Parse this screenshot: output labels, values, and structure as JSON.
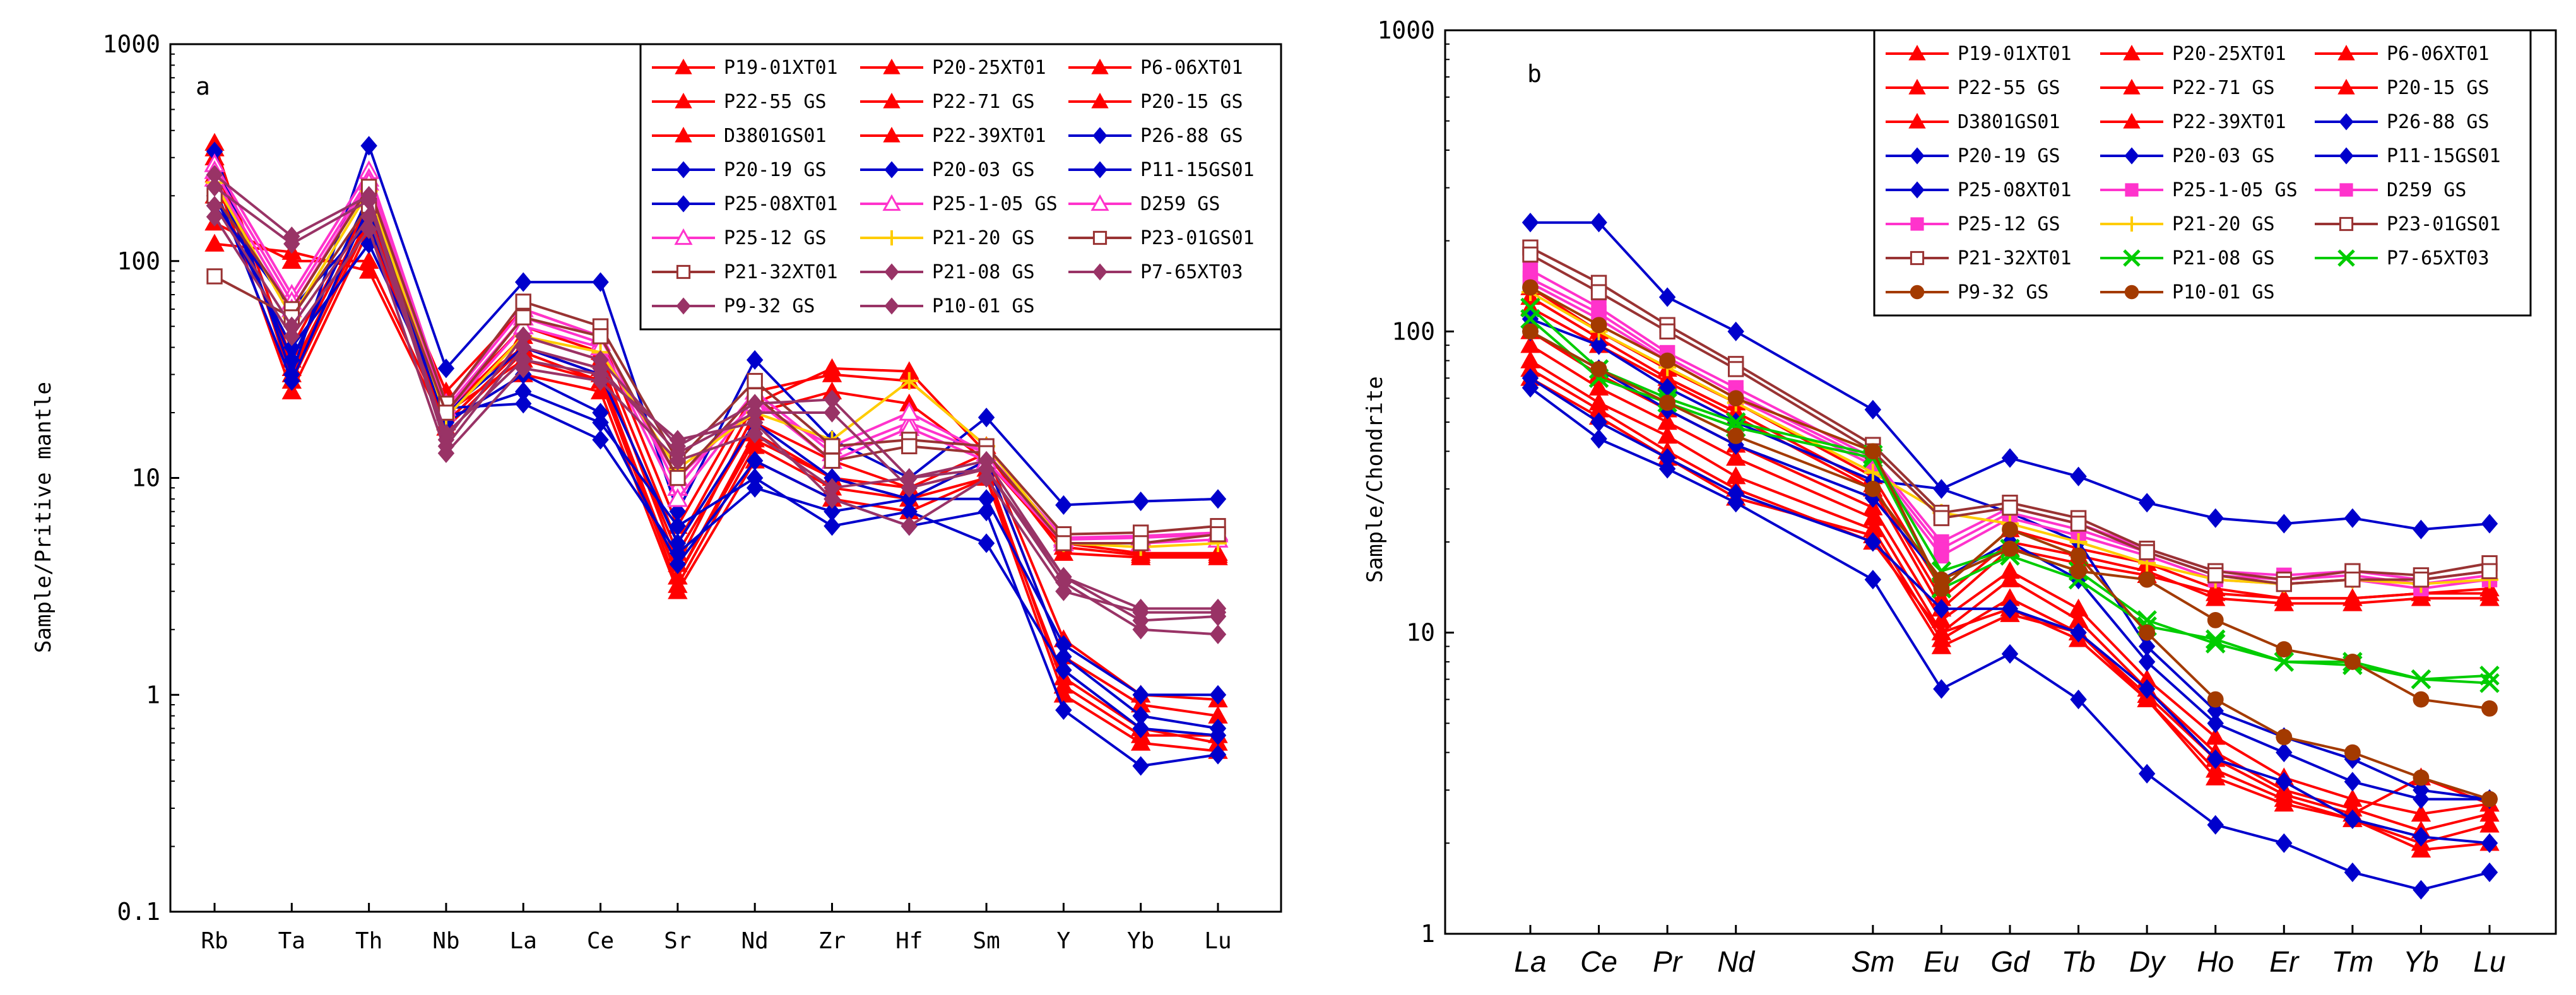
{
  "chart_data": [
    {
      "type": "line",
      "panel_label": "a",
      "ylabel": "Sample/Pritive mantle",
      "yscale": "log",
      "ylim": [
        0.1,
        1000
      ],
      "y_tick_labels": [
        "0.1",
        "1",
        "10",
        "100",
        "1000"
      ],
      "categories": [
        "Rb",
        "Ta",
        "Th",
        "Nb",
        "La",
        "Ce",
        "Sr",
        "Nd",
        "Zr",
        "Hf",
        "Sm",
        "Y",
        "Yb",
        "Lu"
      ],
      "legend_position": "top-right",
      "series": [
        {
          "name": "P19-01XT01",
          "color": "#ff0000",
          "marker": "triangle",
          "values": [
            350,
            28,
            150,
            20,
            35,
            28,
            3.5,
            15,
            10,
            8,
            12,
            1.5,
            0.9,
            0.8
          ]
        },
        {
          "name": "P20-25XT01",
          "color": "#ff0000",
          "marker": "triangle",
          "values": [
            300,
            30,
            160,
            22,
            40,
            32,
            4.5,
            18,
            12,
            9,
            13,
            1.8,
            1.0,
            0.95
          ]
        },
        {
          "name": "P6-06XT01",
          "color": "#ff0000",
          "marker": "triangle",
          "values": [
            250,
            25,
            140,
            18,
            30,
            25,
            3.0,
            12,
            8,
            7,
            10,
            1.2,
            0.7,
            0.6
          ]
        },
        {
          "name": "P22-55 GS",
          "color": "#ff0000",
          "marker": "triangle",
          "values": [
            330,
            35,
            170,
            25,
            60,
            45,
            6,
            25,
            30,
            28,
            14,
            5,
            4.5,
            4.5
          ]
        },
        {
          "name": "P22-71 GS",
          "color": "#ff0000",
          "marker": "triangle",
          "values": [
            280,
            32,
            155,
            21,
            50,
            38,
            5,
            22,
            32,
            31,
            13,
            4.5,
            4.3,
            4.3
          ]
        },
        {
          "name": "P20-15 GS",
          "color": "#ff0000",
          "marker": "triangle",
          "values": [
            200,
            40,
            180,
            20,
            45,
            35,
            4,
            20,
            25,
            22,
            12,
            4.8,
            4.4,
            4.4
          ]
        },
        {
          "name": "D3801GS01",
          "color": "#ff0000",
          "marker": "triangle",
          "values": [
            150,
            100,
            100,
            18,
            40,
            30,
            3.5,
            16,
            10,
            9,
            11,
            1.1,
            0.65,
            0.65
          ]
        },
        {
          "name": "P22-39XT01",
          "color": "#ff0000",
          "marker": "triangle",
          "values": [
            120,
            110,
            90,
            17,
            38,
            28,
            3.2,
            14,
            9,
            8,
            10,
            1.0,
            0.6,
            0.55
          ]
        },
        {
          "name": "P26-88 GS",
          "color": "#0000cc",
          "marker": "diamond",
          "values": [
            320,
            30,
            340,
            32,
            80,
            80,
            7,
            35,
            15,
            10,
            19,
            7.5,
            7.8,
            8.0
          ]
        },
        {
          "name": "P20-19 GS",
          "color": "#0000cc",
          "marker": "diamond",
          "values": [
            250,
            35,
            200,
            20,
            40,
            30,
            5,
            18,
            10,
            8,
            12,
            1.5,
            0.8,
            0.7
          ]
        },
        {
          "name": "P20-03 GS",
          "color": "#0000cc",
          "marker": "diamond",
          "values": [
            220,
            28,
            180,
            18,
            30,
            20,
            4,
            12,
            8,
            6,
            7,
            0.85,
            0.47,
            0.53
          ]
        },
        {
          "name": "P11-15GS01",
          "color": "#0000cc",
          "marker": "diamond",
          "values": [
            180,
            60,
            150,
            19,
            25,
            18,
            6,
            10,
            6,
            7,
            5,
            1.3,
            0.7,
            0.65
          ]
        },
        {
          "name": "P25-08XT01",
          "color": "#0000cc",
          "marker": "diamond",
          "values": [
            200,
            40,
            120,
            21,
            22,
            15,
            4.5,
            9,
            7,
            8,
            8,
            1.7,
            1.0,
            1.0
          ]
        },
        {
          "name": "P25-1-05 GS",
          "color": "#ff33cc",
          "marker": "open-triangle",
          "values": [
            280,
            70,
            260,
            22,
            60,
            45,
            9,
            25,
            13,
            18,
            13,
            5.2,
            5.3,
            5.5
          ]
        },
        {
          "name": "D259 GS",
          "color": "#ff33cc",
          "marker": "open-triangle",
          "values": [
            260,
            65,
            240,
            21,
            55,
            42,
            8,
            23,
            12,
            17,
            12,
            5.0,
            5.0,
            5.2
          ]
        },
        {
          "name": "P25-12 GS",
          "color": "#ff33cc",
          "marker": "open-triangle",
          "values": [
            240,
            60,
            230,
            20,
            50,
            40,
            10,
            22,
            14,
            20,
            13,
            5.3,
            5.4,
            5.6
          ]
        },
        {
          "name": "P21-20 GS",
          "color": "#ffcc00",
          "marker": "plus",
          "values": [
            230,
            55,
            210,
            19,
            45,
            38,
            11,
            20,
            15,
            28,
            14,
            5.0,
            4.8,
            5.0
          ]
        },
        {
          "name": "P23-01GS01",
          "color": "#993333",
          "marker": "open-square",
          "values": [
            200,
            60,
            220,
            22,
            65,
            50,
            12,
            28,
            14,
            15,
            14,
            5.5,
            5.6,
            6.0
          ]
        },
        {
          "name": "P21-32XT01",
          "color": "#993333",
          "marker": "open-square",
          "values": [
            85,
            55,
            180,
            20,
            55,
            45,
            10,
            24,
            12,
            14,
            13,
            5.0,
            5.0,
            5.5
          ]
        },
        {
          "name": "P21-08 GS",
          "color": "#993366",
          "marker": "diamond",
          "values": [
            250,
            130,
            200,
            15,
            45,
            35,
            14,
            22,
            23,
            10,
            12,
            3.5,
            2.2,
            2.3
          ]
        },
        {
          "name": "P7-65XT03",
          "color": "#993366",
          "marker": "diamond",
          "values": [
            220,
            120,
            190,
            14,
            40,
            32,
            13,
            20,
            20,
            9,
            11,
            3.3,
            2.0,
            1.9
          ]
        },
        {
          "name": "P9-32 GS",
          "color": "#993366",
          "marker": "diamond",
          "values": [
            180,
            50,
            160,
            16,
            35,
            30,
            15,
            18,
            8,
            6,
            10,
            3.0,
            2.4,
            2.4
          ]
        },
        {
          "name": "P10-01 GS",
          "color": "#993366",
          "marker": "diamond",
          "values": [
            160,
            45,
            140,
            13,
            32,
            28,
            12,
            16,
            9,
            10,
            11,
            3.5,
            2.5,
            2.5
          ]
        }
      ]
    },
    {
      "type": "line",
      "panel_label": "b",
      "ylabel": "Sample/Chondrite",
      "yscale": "log",
      "ylim": [
        1,
        1000
      ],
      "y_tick_labels": [
        "1",
        "10",
        "100",
        "1000"
      ],
      "categories": [
        "La",
        "Ce",
        "Pr",
        "Nd",
        "Sm",
        "Eu",
        "Gd",
        "Tb",
        "Dy",
        "Ho",
        "Er",
        "Tm",
        "Yb",
        "Lu"
      ],
      "x_index": [
        0,
        1,
        2,
        3,
        5,
        6,
        7,
        8,
        9,
        10,
        11,
        12,
        13,
        14
      ],
      "legend_position": "top-right",
      "series": [
        {
          "name": "P19-01XT01",
          "color": "#ff0000",
          "marker": "triangle",
          "values": [
            90,
            65,
            50,
            38,
            24,
            10,
            15,
            11,
            6.5,
            4.0,
            3.0,
            2.6,
            2.2,
            2.5
          ]
        },
        {
          "name": "P20-25XT01",
          "color": "#ff0000",
          "marker": "triangle",
          "values": [
            100,
            72,
            55,
            42,
            26,
            11,
            16,
            12,
            7.0,
            4.5,
            3.3,
            2.8,
            2.5,
            2.7
          ]
        },
        {
          "name": "P6-06XT01",
          "color": "#ff0000",
          "marker": "triangle",
          "values": [
            80,
            58,
            45,
            33,
            22,
            9.5,
            13,
            10,
            6.0,
            3.5,
            2.8,
            2.4,
            1.9,
            2.0
          ]
        },
        {
          "name": "P22-55 GS",
          "color": "#ff0000",
          "marker": "triangle",
          "values": [
            140,
            100,
            75,
            58,
            33,
            14,
            22,
            19,
            17,
            14,
            13,
            13,
            13.5,
            14
          ]
        },
        {
          "name": "P22-71 GS",
          "color": "#ff0000",
          "marker": "triangle",
          "values": [
            130,
            95,
            70,
            54,
            31,
            13,
            20,
            18,
            16,
            13,
            12.5,
            12.5,
            13,
            13
          ]
        },
        {
          "name": "P20-15 GS",
          "color": "#ff0000",
          "marker": "triangle",
          "values": [
            120,
            90,
            68,
            52,
            30,
            12,
            19,
            17,
            15.5,
            13.5,
            13,
            13,
            13.5,
            13.5
          ]
        },
        {
          "name": "D3801GS01",
          "color": "#ff0000",
          "marker": "triangle",
          "values": [
            75,
            55,
            40,
            30,
            20,
            10,
            12,
            9.5,
            6.0,
            3.3,
            2.7,
            2.4,
            2.0,
            2.3
          ]
        },
        {
          "name": "P22-39XT01",
          "color": "#ff0000",
          "marker": "triangle",
          "values": [
            70,
            52,
            38,
            28,
            21,
            9,
            11.5,
            10,
            6.2,
            3.8,
            2.9,
            2.5,
            3.3,
            2.7
          ]
        },
        {
          "name": "P26-88 GS",
          "color": "#0000cc",
          "marker": "diamond",
          "values": [
            230,
            230,
            130,
            100,
            55,
            30,
            38,
            33,
            27,
            24,
            23,
            24,
            22,
            23
          ]
        },
        {
          "name": "P20-19 GS",
          "color": "#0000cc",
          "marker": "diamond",
          "values": [
            65,
            44,
            35,
            27,
            15,
            6.5,
            8.5,
            6,
            3.4,
            2.3,
            2.0,
            1.6,
            1.4,
            1.6
          ]
        },
        {
          "name": "P20-03 GS",
          "color": "#0000cc",
          "marker": "diamond",
          "values": [
            70,
            50,
            38,
            29,
            20,
            12,
            12,
            10,
            6.5,
            3.8,
            3.2,
            2.4,
            2.1,
            2.0
          ]
        },
        {
          "name": "P11-15GS01",
          "color": "#0000cc",
          "marker": "diamond",
          "values": [
            100,
            75,
            55,
            42,
            28,
            15,
            20,
            15,
            8,
            5,
            4,
            3.2,
            2.8,
            2.8
          ]
        },
        {
          "name": "P25-08XT01",
          "color": "#0000cc",
          "marker": "diamond",
          "values": [
            110,
            90,
            65,
            50,
            32,
            30,
            25,
            20,
            9,
            5.5,
            4.5,
            3.8,
            3.0,
            2.8
          ]
        },
        {
          "name": "P25-1-05 GS",
          "color": "#ff33cc",
          "marker": "square",
          "values": [
            160,
            120,
            85,
            65,
            38,
            20,
            26,
            23,
            19,
            16,
            15.5,
            16,
            15,
            16
          ]
        },
        {
          "name": "D259 GS",
          "color": "#ff33cc",
          "marker": "square",
          "values": [
            150,
            115,
            82,
            62,
            37,
            19,
            25,
            22,
            18.5,
            15.5,
            15,
            15.5,
            14.5,
            15.5
          ]
        },
        {
          "name": "P25-12 GS",
          "color": "#ff33cc",
          "marker": "square",
          "values": [
            145,
            110,
            80,
            60,
            36,
            18,
            24,
            21,
            18,
            15,
            14.5,
            15,
            14,
            15
          ]
        },
        {
          "name": "P21-20 GS",
          "color": "#ffcc00",
          "marker": "plus",
          "values": [
            135,
            100,
            76,
            58,
            34,
            25,
            23,
            20,
            17,
            15,
            14.5,
            15,
            14.5,
            15
          ]
        },
        {
          "name": "P23-01GS01",
          "color": "#993333",
          "marker": "open-square",
          "values": [
            190,
            145,
            105,
            78,
            42,
            25,
            27,
            24,
            19,
            16,
            15,
            16,
            15.5,
            17
          ]
        },
        {
          "name": "P21-32XT01",
          "color": "#993333",
          "marker": "open-square",
          "values": [
            180,
            135,
            100,
            75,
            40,
            24,
            26,
            23,
            18.5,
            15.5,
            14.5,
            15,
            15,
            16
          ]
        },
        {
          "name": "P21-08 GS",
          "color": "#00cc00",
          "marker": "x",
          "values": [
            110,
            70,
            58,
            48,
            38,
            14,
            18,
            15,
            10.5,
            9.5,
            8,
            8,
            7,
            6.8
          ]
        },
        {
          "name": "P7-65XT03",
          "color": "#00cc00",
          "marker": "x",
          "values": [
            120,
            75,
            60,
            50,
            39,
            16,
            19,
            16,
            11,
            9.2,
            8,
            7.8,
            7,
            7.2
          ]
        },
        {
          "name": "P9-32 GS",
          "color": "#a33a00",
          "marker": "circle",
          "values": [
            140,
            105,
            80,
            60,
            40,
            14,
            22,
            18,
            10,
            6,
            4.5,
            4,
            3.3,
            2.8
          ]
        },
        {
          "name": "P10-01 GS",
          "color": "#a33a00",
          "marker": "circle",
          "values": [
            100,
            75,
            58,
            45,
            30,
            15,
            19,
            16,
            15,
            11,
            8.8,
            8,
            6,
            5.6
          ]
        }
      ]
    }
  ]
}
